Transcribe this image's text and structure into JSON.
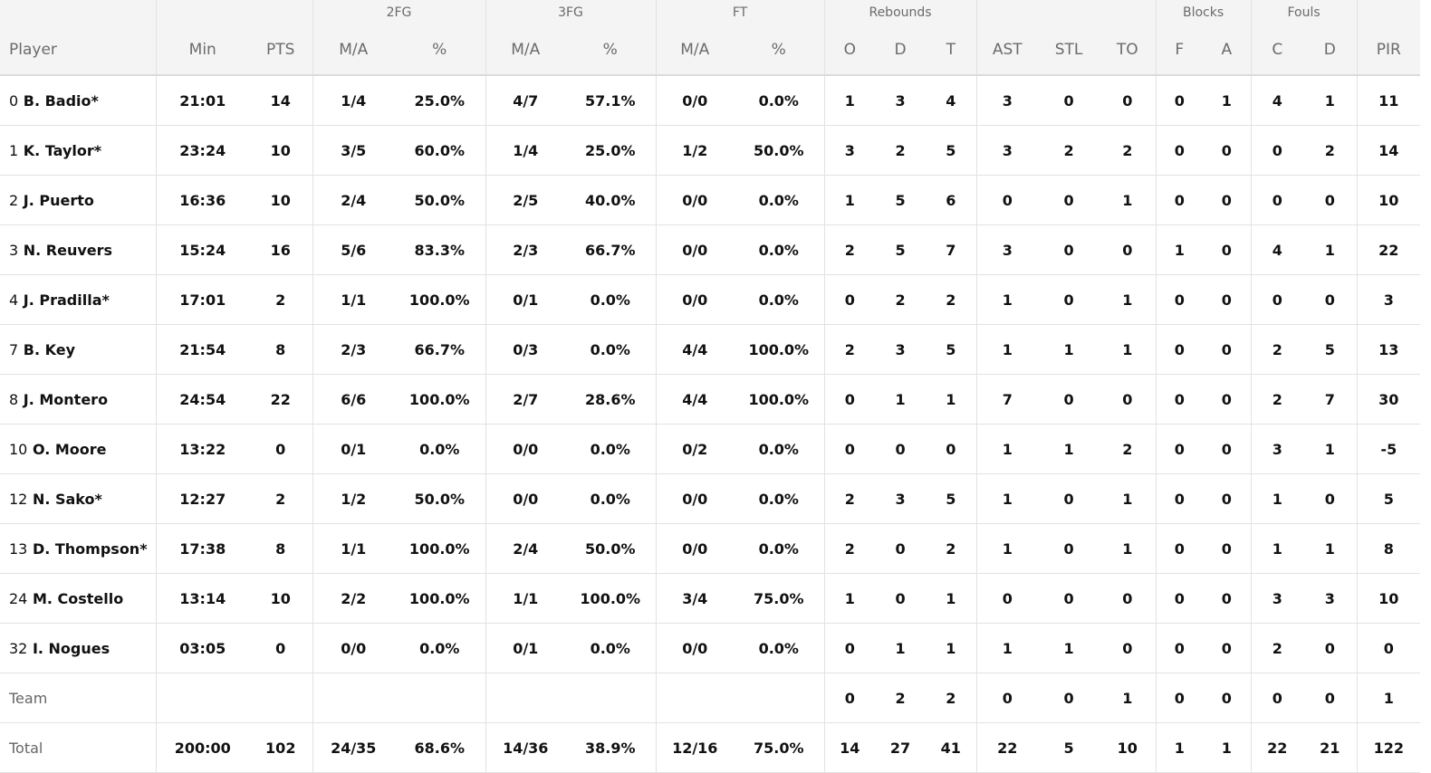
{
  "groups": {
    "fg2": "2FG",
    "fg3": "3FG",
    "ft": "FT",
    "reb": "Rebounds",
    "blk": "Blocks",
    "fls": "Fouls"
  },
  "columns": [
    "Player",
    "Min",
    "PTS",
    "M/A",
    "%",
    "M/A",
    "%",
    "M/A",
    "%",
    "O",
    "D",
    "T",
    "AST",
    "STL",
    "TO",
    "F",
    "A",
    "C",
    "D",
    "PIR"
  ],
  "players": [
    {
      "num": "0",
      "name": "B. Badio*",
      "stats": [
        "21:01",
        "14",
        "1/4",
        "25.0%",
        "4/7",
        "57.1%",
        "0/0",
        "0.0%",
        "1",
        "3",
        "4",
        "3",
        "0",
        "0",
        "0",
        "1",
        "4",
        "1",
        "11"
      ]
    },
    {
      "num": "1",
      "name": "K. Taylor*",
      "stats": [
        "23:24",
        "10",
        "3/5",
        "60.0%",
        "1/4",
        "25.0%",
        "1/2",
        "50.0%",
        "3",
        "2",
        "5",
        "3",
        "2",
        "2",
        "0",
        "0",
        "0",
        "2",
        "14"
      ]
    },
    {
      "num": "2",
      "name": "J. Puerto",
      "stats": [
        "16:36",
        "10",
        "2/4",
        "50.0%",
        "2/5",
        "40.0%",
        "0/0",
        "0.0%",
        "1",
        "5",
        "6",
        "0",
        "0",
        "1",
        "0",
        "0",
        "0",
        "0",
        "10"
      ]
    },
    {
      "num": "3",
      "name": "N. Reuvers",
      "stats": [
        "15:24",
        "16",
        "5/6",
        "83.3%",
        "2/3",
        "66.7%",
        "0/0",
        "0.0%",
        "2",
        "5",
        "7",
        "3",
        "0",
        "0",
        "1",
        "0",
        "4",
        "1",
        "22"
      ]
    },
    {
      "num": "4",
      "name": "J. Pradilla*",
      "stats": [
        "17:01",
        "2",
        "1/1",
        "100.0%",
        "0/1",
        "0.0%",
        "0/0",
        "0.0%",
        "0",
        "2",
        "2",
        "1",
        "0",
        "1",
        "0",
        "0",
        "0",
        "0",
        "3"
      ]
    },
    {
      "num": "7",
      "name": "B. Key",
      "stats": [
        "21:54",
        "8",
        "2/3",
        "66.7%",
        "0/3",
        "0.0%",
        "4/4",
        "100.0%",
        "2",
        "3",
        "5",
        "1",
        "1",
        "1",
        "0",
        "0",
        "2",
        "5",
        "13"
      ]
    },
    {
      "num": "8",
      "name": "J. Montero",
      "stats": [
        "24:54",
        "22",
        "6/6",
        "100.0%",
        "2/7",
        "28.6%",
        "4/4",
        "100.0%",
        "0",
        "1",
        "1",
        "7",
        "0",
        "0",
        "0",
        "0",
        "2",
        "7",
        "30"
      ]
    },
    {
      "num": "10",
      "name": "O. Moore",
      "stats": [
        "13:22",
        "0",
        "0/1",
        "0.0%",
        "0/0",
        "0.0%",
        "0/2",
        "0.0%",
        "0",
        "0",
        "0",
        "1",
        "1",
        "2",
        "0",
        "0",
        "3",
        "1",
        "-5"
      ]
    },
    {
      "num": "12",
      "name": "N. Sako*",
      "stats": [
        "12:27",
        "2",
        "1/2",
        "50.0%",
        "0/0",
        "0.0%",
        "0/0",
        "0.0%",
        "2",
        "3",
        "5",
        "1",
        "0",
        "1",
        "0",
        "0",
        "1",
        "0",
        "5"
      ]
    },
    {
      "num": "13",
      "name": "D. Thompson*",
      "stats": [
        "17:38",
        "8",
        "1/1",
        "100.0%",
        "2/4",
        "50.0%",
        "0/0",
        "0.0%",
        "2",
        "0",
        "2",
        "1",
        "0",
        "1",
        "0",
        "0",
        "1",
        "1",
        "8"
      ]
    },
    {
      "num": "24",
      "name": "M. Costello",
      "stats": [
        "13:14",
        "10",
        "2/2",
        "100.0%",
        "1/1",
        "100.0%",
        "3/4",
        "75.0%",
        "1",
        "0",
        "1",
        "0",
        "0",
        "0",
        "0",
        "0",
        "3",
        "3",
        "10"
      ]
    },
    {
      "num": "32",
      "name": "I. Nogues",
      "stats": [
        "03:05",
        "0",
        "0/0",
        "0.0%",
        "0/1",
        "0.0%",
        "0/0",
        "0.0%",
        "0",
        "1",
        "1",
        "1",
        "1",
        "0",
        "0",
        "0",
        "2",
        "0",
        "0"
      ]
    }
  ],
  "team": {
    "label": "Team",
    "stats": [
      "",
      "",
      "",
      "",
      "",
      "",
      "",
      "",
      "0",
      "2",
      "2",
      "0",
      "0",
      "1",
      "0",
      "0",
      "0",
      "0",
      "1"
    ]
  },
  "total": {
    "label": "Total",
    "stats": [
      "200:00",
      "102",
      "24/35",
      "68.6%",
      "14/36",
      "38.9%",
      "12/16",
      "75.0%",
      "14",
      "27",
      "41",
      "22",
      "5",
      "10",
      "1",
      "1",
      "22",
      "21",
      "122"
    ]
  }
}
